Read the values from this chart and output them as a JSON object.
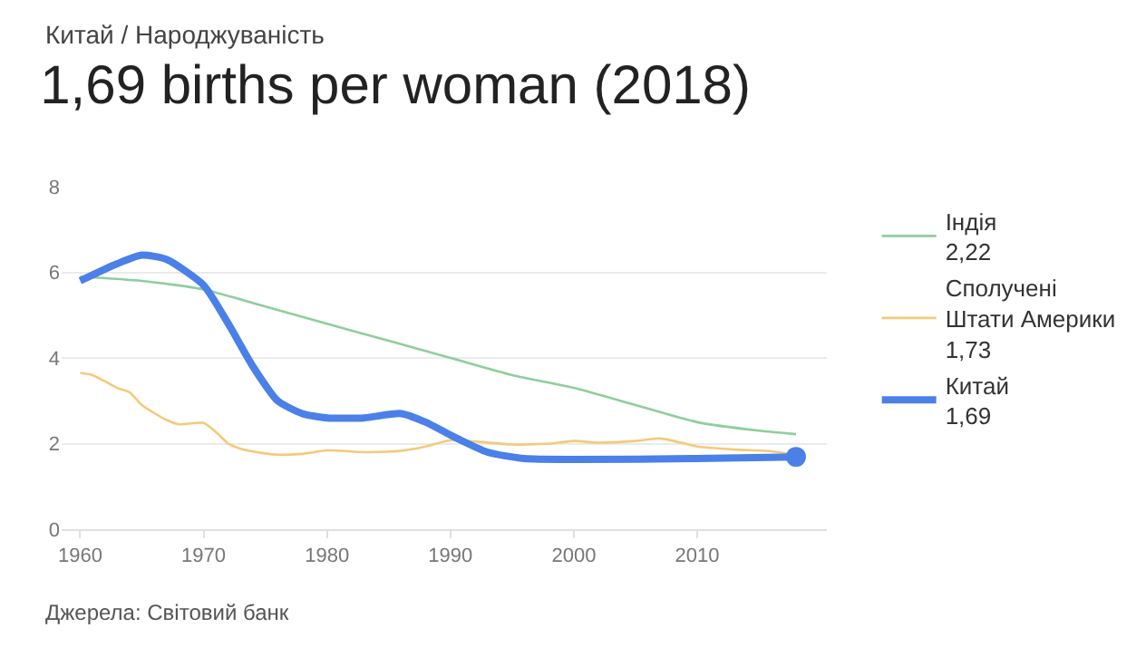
{
  "chart_data": {
    "type": "line",
    "title": "1,69 births per woman (2018)",
    "annotations": [
      "Китай / Народжуваність",
      "Джерела: Світовий банк",
      "2,22",
      "1,73",
      "1,69"
    ],
    "xlim": [
      1958.5,
      2020.5
    ],
    "xticks": [
      1960,
      1970,
      1980,
      1990,
      2000,
      2010
    ],
    "ylim": [
      0,
      8
    ],
    "yticks": [
      0,
      2,
      4,
      6,
      8
    ],
    "grid": "y",
    "legend": "right",
    "line_style": "solid",
    "series": [
      {
        "name": "Індія",
        "color": "#8fce9c",
        "x": [
          1960,
          1965,
          1970,
          1975,
          1980,
          1985,
          1990,
          1995,
          2000,
          2005,
          2010,
          2015,
          2018
        ],
        "values": [
          5.9,
          5.8,
          5.6,
          5.2,
          4.8,
          4.4,
          4.0,
          3.6,
          3.3,
          2.9,
          2.5,
          2.3,
          2.22
        ]
      },
      {
        "name": "Сполучені Штати Америки",
        "color": "#f5c97a",
        "x": [
          1960,
          1961,
          1963,
          1964,
          1965,
          1967,
          1968,
          1970,
          1971,
          1972,
          1973,
          1975,
          1976,
          1978,
          1980,
          1983,
          1986,
          1988,
          1990,
          1992,
          1995,
          1998,
          2000,
          2002,
          2005,
          2007,
          2009,
          2010,
          2013,
          2016,
          2018
        ],
        "values": [
          3.65,
          3.6,
          3.3,
          3.2,
          2.9,
          2.55,
          2.45,
          2.48,
          2.27,
          2.0,
          1.88,
          1.77,
          1.74,
          1.76,
          1.84,
          1.8,
          1.83,
          1.93,
          2.08,
          2.05,
          1.98,
          2.0,
          2.06,
          2.02,
          2.06,
          2.12,
          2.0,
          1.93,
          1.86,
          1.82,
          1.73
        ]
      },
      {
        "name": "Китай",
        "color": "#4a80e8",
        "x": [
          1960,
          1963,
          1965,
          1967,
          1970,
          1972,
          1974,
          1976,
          1978,
          1980,
          1983,
          1986,
          1988,
          1990,
          1993,
          1996,
          2000,
          2010,
          2018
        ],
        "values": [
          5.8,
          6.2,
          6.4,
          6.3,
          5.7,
          4.8,
          3.8,
          3.0,
          2.7,
          2.6,
          2.6,
          2.7,
          2.5,
          2.2,
          1.8,
          1.65,
          1.63,
          1.65,
          1.69
        ]
      }
    ]
  }
}
